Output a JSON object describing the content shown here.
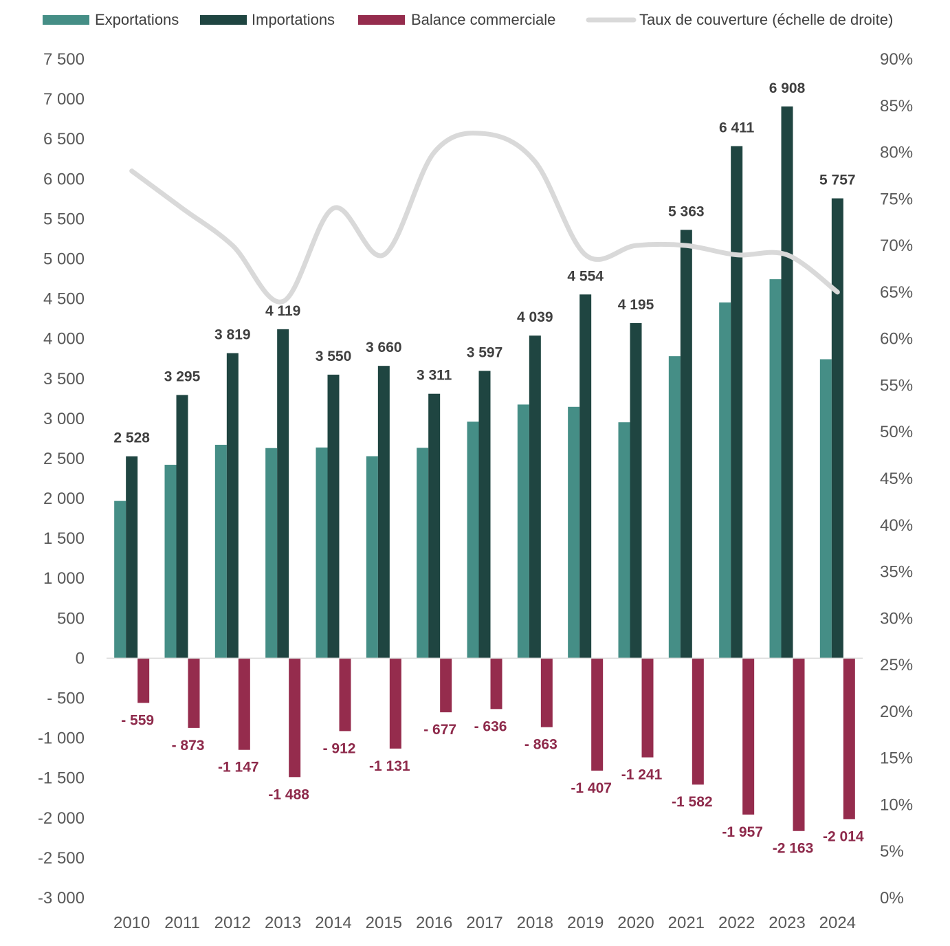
{
  "chart_data": {
    "type": "bar",
    "categories": [
      "2010",
      "2011",
      "2012",
      "2013",
      "2014",
      "2015",
      "2016",
      "2017",
      "2018",
      "2019",
      "2020",
      "2021",
      "2022",
      "2023",
      "2024"
    ],
    "series": [
      {
        "name": "Exportations",
        "color": "#458E86",
        "values": [
          1969,
          2422,
          2672,
          2631,
          2638,
          2529,
          2634,
          2961,
          3176,
          3147,
          2954,
          3781,
          4454,
          4745,
          3743
        ]
      },
      {
        "name": "Importations",
        "color": "#1F4541",
        "values": [
          2528,
          3295,
          3819,
          4119,
          3550,
          3660,
          3311,
          3597,
          4039,
          4554,
          4195,
          5363,
          6411,
          6908,
          5757
        ],
        "labels": [
          "2 528",
          "3 295",
          "3 819",
          "4 119",
          "3 550",
          "3 660",
          "3 311",
          "3 597",
          "4 039",
          "4 554",
          "4 195",
          "5 363",
          "6 411",
          "6 908",
          "5 757"
        ]
      },
      {
        "name": "Balance commerciale",
        "color": "#952C4D",
        "values": [
          -559,
          -873,
          -1147,
          -1488,
          -912,
          -1131,
          -677,
          -636,
          -863,
          -1407,
          -1241,
          -1582,
          -1957,
          -2163,
          -2014
        ],
        "labels": [
          "- 559",
          "- 873",
          "-1 147",
          "-1 488",
          "- 912",
          "-1 131",
          "- 677",
          "- 636",
          "- 863",
          "-1 407",
          "-1 241",
          "-1 582",
          "-1 957",
          "-2 163",
          "-2 014"
        ]
      },
      {
        "name": "Taux de couverture (échelle de droite)",
        "color": "#D9D9D9",
        "type": "line",
        "axis": "right",
        "values": [
          78,
          74,
          70,
          64,
          74,
          69,
          80,
          82,
          79,
          69,
          70,
          70,
          69,
          69,
          65
        ]
      }
    ],
    "title": "",
    "xlabel": "",
    "ylabel": "",
    "ylim": [
      -3000,
      7500
    ],
    "yticks": [
      7500,
      7000,
      6500,
      6000,
      5500,
      5000,
      4500,
      4000,
      3500,
      3000,
      2500,
      2000,
      1500,
      1000,
      500,
      0,
      -500,
      -1000,
      -1500,
      -2000,
      -2500,
      -3000
    ],
    "ytick_labels": [
      "7 500",
      "7 000",
      "6 500",
      "6 000",
      "5 500",
      "5 000",
      "4 500",
      "4 000",
      "3 500",
      "3 000",
      "2 500",
      "2 000",
      "1 500",
      "1 000",
      "500",
      "0",
      "- 500",
      "-1 000",
      "-1 500",
      "-2 000",
      "-2 500",
      "-3 000"
    ],
    "y2lim": [
      0,
      90
    ],
    "y2ticks": [
      90,
      85,
      80,
      75,
      70,
      65,
      60,
      55,
      50,
      45,
      40,
      35,
      30,
      25,
      20,
      15,
      10,
      5,
      0
    ],
    "y2tick_labels": [
      "90%",
      "85%",
      "80%",
      "75%",
      "70%",
      "65%",
      "60%",
      "55%",
      "50%",
      "45%",
      "40%",
      "35%",
      "30%",
      "25%",
      "20%",
      "15%",
      "10%",
      "5%",
      "0%"
    ],
    "legend_position": "top",
    "grid": false
  }
}
